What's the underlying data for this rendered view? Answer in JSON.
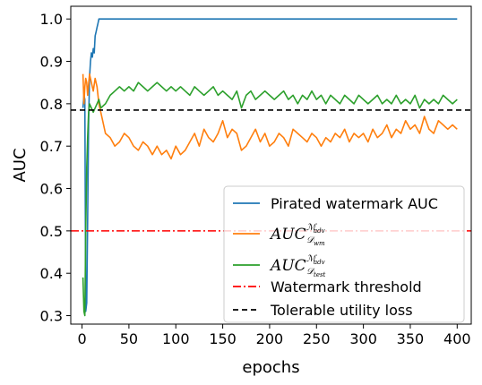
{
  "chart_data": {
    "type": "line",
    "xlabel": "epochs",
    "ylabel": "AUC",
    "xlim": [
      -12,
      415
    ],
    "ylim": [
      0.28,
      1.03
    ],
    "xticks": [
      0,
      50,
      100,
      150,
      200,
      250,
      300,
      350,
      400
    ],
    "yticks": [
      0.3,
      0.4,
      0.5,
      0.6,
      0.7,
      0.8,
      0.9,
      1.0
    ],
    "xtick_labels": [
      "0",
      "50",
      "100",
      "150",
      "200",
      "250",
      "300",
      "350",
      "400"
    ],
    "ytick_labels": [
      "0.3",
      "0.4",
      "0.5",
      "0.6",
      "0.7",
      "0.8",
      "0.9",
      "1.0"
    ],
    "grid": false,
    "legend_position": "lower-right",
    "series": [
      {
        "name": "Pirated watermark AUC",
        "color": "#1f77b4",
        "x": [
          1,
          2,
          3,
          4,
          5,
          6,
          7,
          8,
          9,
          10,
          11,
          12,
          13,
          14,
          15,
          16,
          17,
          18,
          19,
          20,
          22,
          25,
          30,
          50,
          100,
          200,
          300,
          400
        ],
        "y": [
          0.79,
          0.82,
          0.81,
          0.31,
          0.33,
          0.52,
          0.75,
          0.86,
          0.9,
          0.92,
          0.91,
          0.93,
          0.92,
          0.96,
          0.97,
          0.98,
          0.99,
          1.0,
          1.0,
          1.0,
          1.0,
          1.0,
          1.0,
          1.0,
          1.0,
          1.0,
          1.0,
          1.0
        ]
      },
      {
        "name": "AUC_{D_wm}^{M_adv}",
        "color": "#ff7f0e",
        "x": [
          1,
          2,
          3,
          4,
          5,
          6,
          8,
          10,
          12,
          14,
          16,
          18,
          20,
          22,
          25,
          30,
          35,
          40,
          45,
          50,
          55,
          60,
          65,
          70,
          75,
          80,
          85,
          90,
          95,
          100,
          105,
          110,
          115,
          120,
          125,
          130,
          135,
          140,
          145,
          150,
          155,
          160,
          165,
          170,
          175,
          180,
          185,
          190,
          195,
          200,
          205,
          210,
          215,
          220,
          225,
          230,
          235,
          240,
          245,
          250,
          255,
          260,
          265,
          270,
          275,
          280,
          285,
          290,
          295,
          300,
          305,
          310,
          315,
          320,
          325,
          330,
          335,
          340,
          345,
          350,
          355,
          360,
          365,
          370,
          375,
          380,
          385,
          390,
          395,
          400
        ],
        "y": [
          0.87,
          0.8,
          0.84,
          0.86,
          0.85,
          0.82,
          0.87,
          0.85,
          0.83,
          0.86,
          0.84,
          0.8,
          0.78,
          0.76,
          0.73,
          0.72,
          0.7,
          0.71,
          0.73,
          0.72,
          0.7,
          0.69,
          0.71,
          0.7,
          0.68,
          0.7,
          0.68,
          0.69,
          0.67,
          0.7,
          0.68,
          0.69,
          0.71,
          0.73,
          0.7,
          0.74,
          0.72,
          0.71,
          0.73,
          0.76,
          0.72,
          0.74,
          0.73,
          0.69,
          0.7,
          0.72,
          0.74,
          0.71,
          0.73,
          0.7,
          0.71,
          0.73,
          0.72,
          0.7,
          0.74,
          0.73,
          0.72,
          0.71,
          0.73,
          0.72,
          0.7,
          0.72,
          0.71,
          0.73,
          0.72,
          0.74,
          0.71,
          0.73,
          0.72,
          0.73,
          0.71,
          0.74,
          0.72,
          0.73,
          0.75,
          0.72,
          0.74,
          0.73,
          0.76,
          0.74,
          0.75,
          0.73,
          0.77,
          0.74,
          0.73,
          0.76,
          0.75,
          0.74,
          0.75,
          0.74
        ]
      },
      {
        "name": "AUC_{D_test}^{M_adv}",
        "color": "#2ca02c",
        "x": [
          1,
          2,
          3,
          4,
          5,
          6,
          7,
          8,
          10,
          12,
          14,
          16,
          18,
          20,
          25,
          30,
          35,
          40,
          45,
          50,
          55,
          60,
          65,
          70,
          75,
          80,
          85,
          90,
          95,
          100,
          105,
          110,
          115,
          120,
          125,
          130,
          135,
          140,
          145,
          150,
          155,
          160,
          165,
          170,
          175,
          180,
          185,
          190,
          195,
          200,
          205,
          210,
          215,
          220,
          225,
          230,
          235,
          240,
          245,
          250,
          255,
          260,
          265,
          270,
          275,
          280,
          285,
          290,
          295,
          300,
          305,
          310,
          315,
          320,
          325,
          330,
          335,
          340,
          345,
          350,
          355,
          360,
          365,
          370,
          375,
          380,
          385,
          390,
          395,
          400
        ],
        "y": [
          0.39,
          0.31,
          0.3,
          0.5,
          0.65,
          0.72,
          0.78,
          0.8,
          0.79,
          0.78,
          0.79,
          0.8,
          0.81,
          0.79,
          0.8,
          0.82,
          0.83,
          0.84,
          0.83,
          0.84,
          0.83,
          0.85,
          0.84,
          0.83,
          0.84,
          0.85,
          0.84,
          0.83,
          0.84,
          0.83,
          0.84,
          0.83,
          0.82,
          0.84,
          0.83,
          0.82,
          0.83,
          0.84,
          0.82,
          0.83,
          0.82,
          0.81,
          0.83,
          0.79,
          0.82,
          0.83,
          0.81,
          0.82,
          0.83,
          0.82,
          0.81,
          0.82,
          0.83,
          0.81,
          0.82,
          0.8,
          0.82,
          0.81,
          0.83,
          0.81,
          0.82,
          0.8,
          0.82,
          0.81,
          0.8,
          0.82,
          0.81,
          0.8,
          0.82,
          0.81,
          0.8,
          0.81,
          0.82,
          0.8,
          0.81,
          0.8,
          0.82,
          0.8,
          0.81,
          0.8,
          0.82,
          0.79,
          0.81,
          0.8,
          0.81,
          0.8,
          0.82,
          0.81,
          0.8,
          0.81
        ]
      },
      {
        "name": "Watermark threshold",
        "color": "#ff0000",
        "style": "dashdot",
        "y_constant": 0.5
      },
      {
        "name": "Tolerable utility loss",
        "color": "#000000",
        "style": "dashed",
        "y_constant": 0.785
      }
    ]
  }
}
